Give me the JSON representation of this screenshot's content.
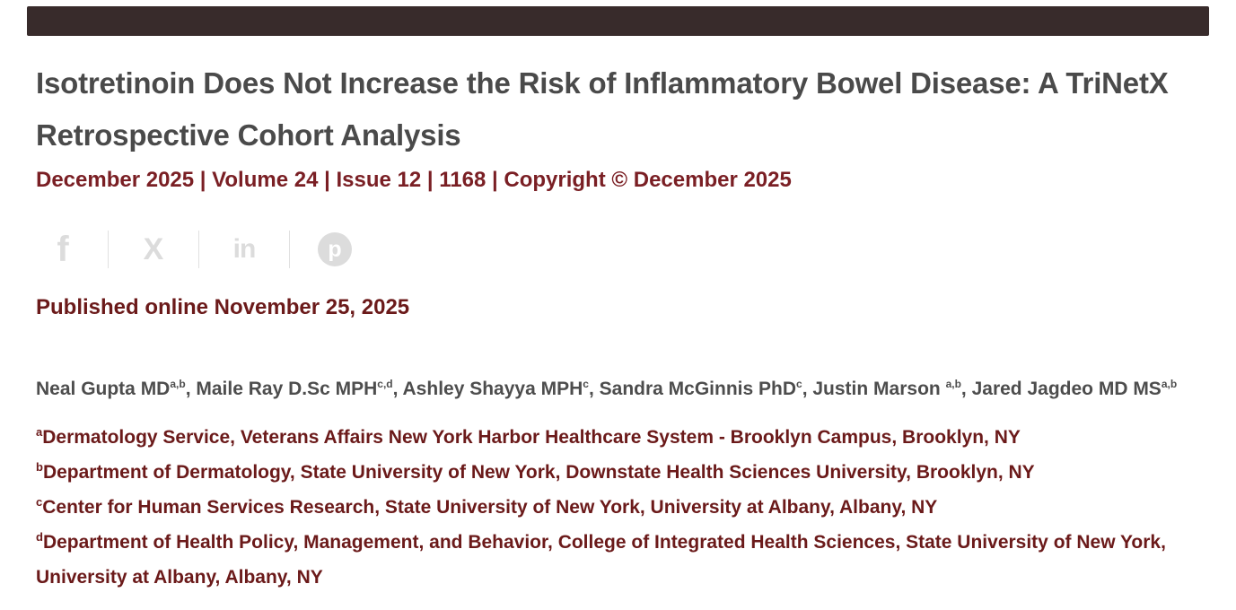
{
  "colors": {
    "top_bar": "#382b2b",
    "brand_red": "#7a1f24",
    "dark_red": "#6b1a1a",
    "title_gray": "#4a4a4a",
    "icon_gray": "#dcdcdc"
  },
  "article": {
    "title": "Isotretinoin Does Not Increase the Risk of Inflammatory Bowel Disease: A TriNetX Retrospective Cohort Analysis",
    "issue_info": "December 2025 | Volume 24 | Issue 12 | 1168 | Copyright © December 2025",
    "published": "Published online November 25, 2025"
  },
  "share": {
    "icons": [
      {
        "name": "facebook",
        "glyph": "f"
      },
      {
        "name": "x-twitter",
        "glyph": "X"
      },
      {
        "name": "linkedin",
        "glyph": "in"
      },
      {
        "name": "pinterest",
        "glyph": "p"
      }
    ]
  },
  "authors": [
    {
      "name": "Neal Gupta MD",
      "sup": "a,b",
      "sep": ", "
    },
    {
      "name": "Maile Ray D.Sc MPH",
      "sup": "c,d",
      "sep": ", "
    },
    {
      "name": "Ashley Shayya MPH",
      "sup": "c",
      "sep": ", "
    },
    {
      "name": "Sandra McGinnis PhD",
      "sup": "c",
      "sep": ", "
    },
    {
      "name": "Justin Marson ",
      "sup": "a,b",
      "sep": ", "
    },
    {
      "name": "Jared Jagdeo MD MS",
      "sup": "a,b",
      "sep": ""
    }
  ],
  "affiliations": [
    {
      "sup": "a",
      "text": "Dermatology Service, Veterans Affairs New York Harbor Healthcare System - Brooklyn Campus, Brooklyn, NY"
    },
    {
      "sup": "b",
      "text": "Department of Dermatology, State University of New York, Downstate Health Sciences University, Brooklyn, NY"
    },
    {
      "sup": "c",
      "text": "Center for Human Services Research, State University of New York, University at Albany, Albany, NY"
    },
    {
      "sup": "d",
      "text": "Department of Health Policy, Management, and Behavior, College of Integrated Health Sciences, State University of New York, University at Albany, Albany, NY"
    }
  ]
}
